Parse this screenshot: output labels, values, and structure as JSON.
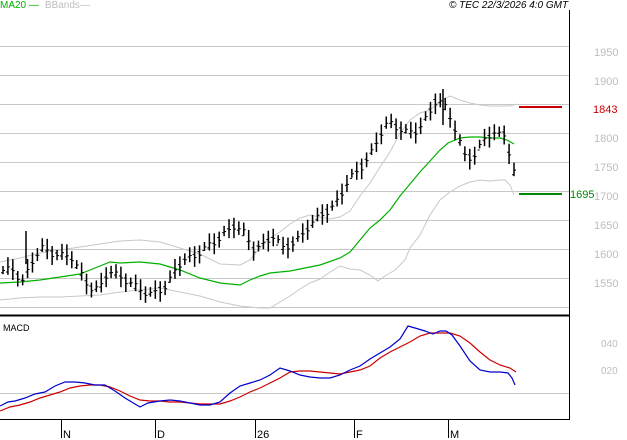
{
  "header": {
    "legend": [
      {
        "label": "MA20",
        "color": "#00b000"
      },
      {
        "label": "BBands",
        "color": "#bdbdbd"
      }
    ],
    "copyright": "© TEC 22/3/2026 4:0 GMT"
  },
  "price_panel": {
    "y_axis_labels": [
      "1950",
      "1900",
      "1800",
      "1750",
      "1700",
      "1650",
      "1600",
      "1550"
    ],
    "resistance": {
      "label": "1843",
      "value": 1843,
      "color": "#cc0000"
    },
    "support": {
      "label": "1695",
      "value": 1695,
      "color": "#008800"
    }
  },
  "macd_panel": {
    "title": "MACD",
    "y_axis_labels": [
      "040",
      "020"
    ]
  },
  "x_axis": {
    "labels": [
      "N",
      "D",
      "26",
      "F",
      "M"
    ]
  },
  "colors": {
    "ma20": "#00b000",
    "bbands": "#c8c8c8",
    "bars": "#000000",
    "macd": "#0000cc",
    "signal": "#cc0000",
    "grid": "#c8c8c8",
    "axis_label": "#bdbdbd"
  },
  "chart_data": [
    {
      "type": "line",
      "title": "Price (OHLC bars) with MA20 and Bollinger Bands",
      "xlabel": "",
      "ylabel": "",
      "x_ticks": [
        "N",
        "D",
        "26",
        "F",
        "M"
      ],
      "ylim": [
        1505,
        1985
      ],
      "y_ticks": [
        1550,
        1600,
        1650,
        1700,
        1750,
        1800,
        1850,
        1900,
        1950
      ],
      "grid": true,
      "legend": [
        "MA20",
        "BBands"
      ],
      "legend_position": "top-left",
      "annotations": [
        {
          "label": "1843",
          "type": "resistance",
          "value": 1843,
          "color": "#cc0000"
        },
        {
          "label": "1695",
          "type": "support",
          "value": 1695,
          "color": "#008800"
        }
      ],
      "series": [
        {
          "name": "Close (approx.)",
          "values": [
            1560,
            1565,
            1545,
            1575,
            1600,
            1595,
            1590,
            1585,
            1560,
            1535,
            1530,
            1560,
            1555,
            1545,
            1530,
            1520,
            1530,
            1535,
            1565,
            1585,
            1590,
            1600,
            1610,
            1630,
            1640,
            1625,
            1600,
            1610,
            1620,
            1600,
            1610,
            1625,
            1640,
            1660,
            1670,
            1690,
            1720,
            1740,
            1760,
            1790,
            1820,
            1810,
            1800,
            1800,
            1830,
            1860,
            1840,
            1800,
            1760,
            1760,
            1790,
            1800,
            1800,
            1730
          ]
        },
        {
          "name": "MA20",
          "values": [
            1552,
            1553,
            1560,
            1570,
            1572,
            1575,
            1575,
            1570,
            1565,
            1558,
            1550,
            1545,
            1540,
            1535,
            1532,
            1535,
            1545,
            1560,
            1570,
            1578,
            1585,
            1592,
            1600,
            1605,
            1610,
            1618,
            1630,
            1645,
            1660,
            1680,
            1700,
            1720,
            1740,
            1758,
            1770,
            1780,
            1790,
            1795,
            1798,
            1800,
            1795,
            1785
          ]
        },
        {
          "name": "BBand upper",
          "values": [
            1600,
            1610,
            1625,
            1630,
            1635,
            1630,
            1625,
            1615,
            1605,
            1590,
            1580,
            1580,
            1590,
            1620,
            1650,
            1655,
            1660,
            1665,
            1670,
            1700,
            1750,
            1800,
            1830,
            1845,
            1860,
            1860,
            1855,
            1850,
            1850
          ]
        },
        {
          "name": "BBand lower",
          "values": [
            1520,
            1525,
            1525,
            1535,
            1545,
            1545,
            1540,
            1525,
            1510,
            1505,
            1510,
            1520,
            1535,
            1545,
            1560,
            1570,
            1560,
            1565,
            1580,
            1620,
            1660,
            1700,
            1740,
            1750,
            1750,
            1740,
            1720
          ]
        }
      ]
    },
    {
      "type": "line",
      "title": "MACD",
      "xlabel": "",
      "ylabel": "",
      "x_ticks": [
        "N",
        "D",
        "26",
        "F",
        "M"
      ],
      "y_ticks": [
        20,
        40
      ],
      "y_tick_labels": [
        "020",
        "040"
      ],
      "ylim": [
        -8,
        58
      ],
      "grid": false,
      "zero_line": true,
      "series": [
        {
          "name": "MACD",
          "color": "#0000cc",
          "values": [
            -5,
            -3,
            -2,
            0,
            3,
            5,
            10,
            12,
            11,
            8,
            2,
            -3,
            -3,
            0,
            0,
            -2,
            -2,
            0,
            5,
            10,
            14,
            16,
            20,
            23,
            17,
            17,
            14,
            13,
            16,
            20,
            25,
            29,
            33,
            38,
            40,
            37,
            37,
            36,
            25,
            15,
            14,
            13,
            9
          ]
        },
        {
          "name": "Signal",
          "color": "#cc0000",
          "values": [
            -8,
            -6,
            -5,
            -2,
            1,
            4,
            8,
            10,
            11,
            10,
            6,
            1,
            -1,
            -1,
            -1,
            -1,
            -1,
            0,
            3,
            7,
            11,
            14,
            17,
            20,
            18,
            18,
            16,
            16,
            18,
            21,
            24,
            28,
            32,
            35,
            37,
            37,
            37,
            35,
            30,
            24,
            20,
            17,
            14
          ]
        }
      ]
    }
  ]
}
